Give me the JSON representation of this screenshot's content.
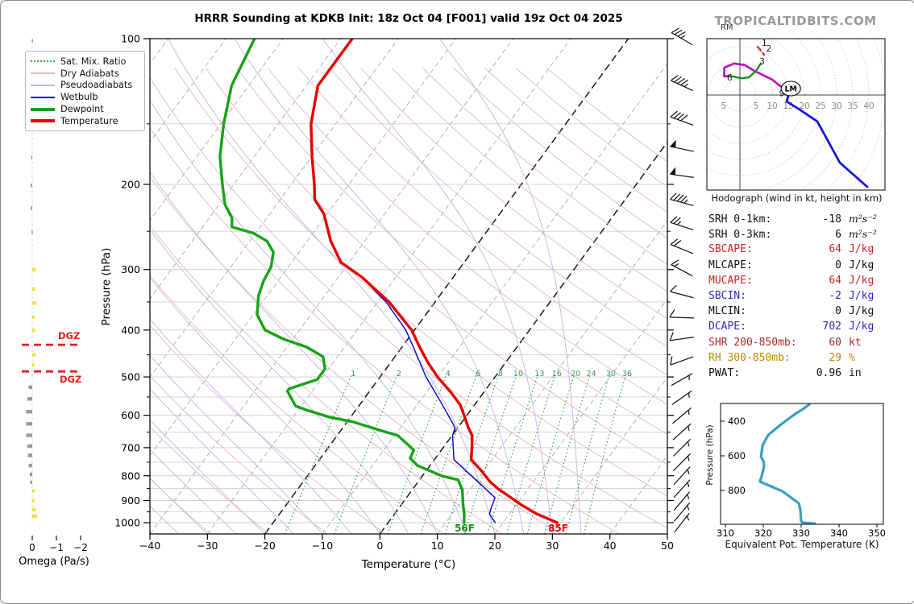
{
  "header": {
    "title": "HRRR Sounding at KDKB Init: 18z Oct 04 [F001] valid 19z Oct 04 2025",
    "watermark": "TROPICALTIDBITS.COM"
  },
  "chart_data": {
    "type": "line",
    "subtype": "skewt-logp-sounding",
    "skewt": {
      "xlabel": "Temperature (°C)",
      "ylabel": "Pressure (hPa)",
      "xlim": [
        -40,
        50
      ],
      "pressure_ticks": [
        100,
        200,
        300,
        400,
        500,
        600,
        700,
        800,
        900,
        1000
      ],
      "temp_ticks": [
        -40,
        -30,
        -20,
        -10,
        0,
        10,
        20,
        30,
        40,
        50
      ],
      "highlight_isotherms": [
        0,
        -20
      ],
      "mixing_ratio_values": [
        1,
        2,
        4,
        6,
        8,
        10,
        13,
        16,
        20,
        24,
        30,
        36
      ],
      "surface_dewpoint_label": "56F",
      "surface_temp_label": "85F",
      "temperature_profile": [
        [
          100,
          -68
        ],
        [
          125,
          -68
        ],
        [
          150,
          -64.3
        ],
        [
          175,
          -60
        ],
        [
          200,
          -56
        ],
        [
          215,
          -54
        ],
        [
          230,
          -50.6
        ],
        [
          262,
          -45.9
        ],
        [
          290,
          -41.4
        ],
        [
          311,
          -35.9
        ],
        [
          350,
          -28
        ],
        [
          400,
          -20.5
        ],
        [
          434,
          -16.9
        ],
        [
          467,
          -13.5
        ],
        [
          500,
          -10
        ],
        [
          540,
          -5.5
        ],
        [
          571,
          -2.5
        ],
        [
          600,
          -0.5
        ],
        [
          636,
          1.8
        ],
        [
          661,
          3.5
        ],
        [
          700,
          5.0
        ],
        [
          741,
          6.4
        ],
        [
          780,
          9.5
        ],
        [
          823,
          12.5
        ],
        [
          850,
          14.7
        ],
        [
          888,
          18.2
        ],
        [
          920,
          21
        ],
        [
          959,
          24.7
        ],
        [
          1000,
          29.4
        ]
      ],
      "dewpoint_profile": [
        [
          100,
          -85
        ],
        [
          125,
          -83
        ],
        [
          150,
          -79.5
        ],
        [
          175,
          -76
        ],
        [
          200,
          -72
        ],
        [
          220,
          -69
        ],
        [
          235,
          -66
        ],
        [
          245,
          -64.9
        ],
        [
          252,
          -60.5
        ],
        [
          262,
          -57
        ],
        [
          276,
          -54.5
        ],
        [
          296,
          -53
        ],
        [
          317,
          -52.5
        ],
        [
          340,
          -51.5
        ],
        [
          372,
          -49.3
        ],
        [
          400,
          -46
        ],
        [
          418,
          -41.5
        ],
        [
          434,
          -36.5
        ],
        [
          454,
          -32.5
        ],
        [
          481,
          -30.6
        ],
        [
          506,
          -30.6
        ],
        [
          529,
          -34.3
        ],
        [
          535,
          -34.3
        ],
        [
          557,
          -32.4
        ],
        [
          574,
          -31
        ],
        [
          585,
          -28.6
        ],
        [
          605,
          -23.8
        ],
        [
          619,
          -19
        ],
        [
          644,
          -13.3
        ],
        [
          661,
          -9.4
        ],
        [
          708,
          -4.8
        ],
        [
          736,
          -4.4
        ],
        [
          762,
          -2.2
        ],
        [
          800,
          3.3
        ],
        [
          816,
          6.7
        ],
        [
          855,
          8.7
        ],
        [
          920,
          10.8
        ],
        [
          959,
          12.1
        ],
        [
          1000,
          13.2
        ]
      ],
      "wetbulb_profile": [
        [
          311,
          -36
        ],
        [
          350,
          -28.5
        ],
        [
          400,
          -21.5
        ],
        [
          434,
          -18
        ],
        [
          500,
          -12
        ],
        [
          571,
          -5.6
        ],
        [
          636,
          -0.5
        ],
        [
          661,
          0.1
        ],
        [
          741,
          3.4
        ],
        [
          823,
          10.4
        ],
        [
          888,
          15.4
        ],
        [
          930,
          16
        ],
        [
          959,
          16.5
        ],
        [
          1000,
          18.6
        ]
      ],
      "colors": {
        "temperature": "#e60000",
        "dewpoint": "#17a217",
        "wetbulb": "#0000d0",
        "dry_adiabat": "#e4b9b9",
        "pseudoadiabat": "#b9b9e4",
        "mixing_ratio": "#3e9b55",
        "isotherm": "#a8a8a8",
        "isotherm_highlight": "#1a1a1a",
        "isobar": "#cfcfcf"
      }
    },
    "legend": [
      {
        "label": "Sat. Mix. Ratio",
        "color": "#3e9b55",
        "style": "dotted",
        "weight": 2
      },
      {
        "label": "Dry Adiabats",
        "color": "#e4b9b9",
        "style": "solid",
        "weight": 2
      },
      {
        "label": "Pseudoadiabats",
        "color": "#b9b9e4",
        "style": "solid",
        "weight": 2
      },
      {
        "label": "Wetbulb",
        "color": "#0000d0",
        "style": "solid",
        "weight": 2
      },
      {
        "label": "Dewpoint",
        "color": "#17a217",
        "style": "solid",
        "weight": 4
      },
      {
        "label": "Temperature",
        "color": "#e60000",
        "style": "solid",
        "weight": 4
      }
    ],
    "omega": {
      "label": "Omega (Pa/s)",
      "ticks": [
        0,
        -1,
        -2
      ],
      "dgz_label": "DGZ",
      "dgz_pressures": [
        429,
        487
      ],
      "bars": [
        [
          101,
          0.02
        ],
        [
          125,
          0.02
        ],
        [
          176,
          0.05
        ],
        [
          201,
          0.06
        ],
        [
          224,
          0.06
        ],
        [
          251,
          0.03
        ],
        [
          300,
          -0.15
        ],
        [
          329,
          -0.12
        ],
        [
          352,
          -0.17
        ],
        [
          376,
          -0.1
        ],
        [
          400,
          -0.12
        ],
        [
          450,
          -0.14
        ],
        [
          472,
          -0.1
        ],
        [
          525,
          0.15
        ],
        [
          555,
          0.2
        ],
        [
          590,
          0.25
        ],
        [
          625,
          0.25
        ],
        [
          660,
          0.25
        ],
        [
          695,
          0.2
        ],
        [
          726,
          0.18
        ],
        [
          762,
          0.15
        ],
        [
          795,
          0.1
        ],
        [
          825,
          0.08
        ],
        [
          860,
          -0.1
        ],
        [
          900,
          -0.1
        ],
        [
          940,
          -0.15
        ],
        [
          970,
          -0.2
        ]
      ]
    },
    "wind_barbs_p_kt_dir": [
      [
        100,
        35,
        300
      ],
      [
        125,
        45,
        295
      ],
      [
        148,
        40,
        290
      ],
      [
        169,
        50,
        282
      ],
      [
        192,
        50,
        278
      ],
      [
        218,
        45,
        285
      ],
      [
        244,
        25,
        288
      ],
      [
        272,
        20,
        292
      ],
      [
        301,
        15,
        298
      ],
      [
        338,
        10,
        285
      ],
      [
        377,
        10,
        272
      ],
      [
        417,
        10,
        262
      ],
      [
        463,
        10,
        250
      ],
      [
        506,
        5,
        60
      ],
      [
        552,
        5,
        55
      ],
      [
        601,
        5,
        50
      ],
      [
        649,
        5,
        48
      ],
      [
        700,
        5,
        45
      ],
      [
        750,
        5,
        45
      ],
      [
        800,
        5,
        42
      ],
      [
        851,
        5,
        42
      ],
      [
        902,
        5,
        40
      ],
      [
        951,
        5,
        40
      ],
      [
        1000,
        5,
        38
      ]
    ],
    "hodograph": {
      "caption": "Hodograph (wind in kt, height in km)",
      "ring_step_kt": 5,
      "ring_axis_labels": [
        5,
        5,
        10,
        15,
        20,
        25,
        30,
        35,
        40
      ],
      "segments": [
        {
          "name": "0-9km-plus",
          "color": "#1515e0",
          "dashed": false,
          "width": 2.8,
          "points_uv": [
            [
              39.5,
              -28.5
            ],
            [
              31,
              -21
            ],
            [
              24,
              -8.2
            ],
            [
              18.5,
              -4.5
            ],
            [
              14.5,
              -2
            ],
            [
              15.3,
              0.8
            ]
          ]
        },
        {
          "name": "6-9km",
          "color": "#bb10bb",
          "dashed": false,
          "width": 2.6,
          "points_uv": [
            [
              15,
              1.3
            ],
            [
              12.5,
              2.8
            ],
            [
              10,
              4.8
            ],
            [
              4.5,
              7.5
            ],
            [
              1.5,
              9.3
            ],
            [
              -1.8,
              9.8
            ],
            [
              -4.8,
              8.5
            ],
            [
              -4.9,
              5.8
            ],
            [
              -2.8,
              5.9
            ]
          ]
        },
        {
          "name": "3-6km",
          "color": "#1f8c1f",
          "dashed": false,
          "width": 2.4,
          "points_uv": [
            [
              -2.8,
              5.9
            ],
            [
              0.5,
              5.2
            ],
            [
              2.8,
              5.5
            ],
            [
              5,
              7.5
            ],
            [
              6.5,
              9.8
            ]
          ]
        },
        {
          "name": "0-2km",
          "color": "#e03030",
          "dashed": true,
          "width": 2.4,
          "points_uv": [
            [
              5.5,
              15
            ],
            [
              7.5,
              12.5
            ]
          ]
        }
      ],
      "height_labels_km": [
        {
          "label": "1",
          "u": 7.6,
          "v": 16.0
        },
        {
          "label": "2",
          "u": 9.0,
          "v": 14.2
        },
        {
          "label": "3",
          "u": 6.9,
          "v": 10.2
        },
        {
          "label": "6",
          "u": -3.2,
          "v": 5.2
        },
        {
          "label": "9",
          "u": 13.0,
          "v": 0.4
        }
      ],
      "storm_motion": {
        "lm_label": "LM",
        "lm_u": 15.8,
        "lm_v": 2.0,
        "rm_label": "RM"
      }
    },
    "stats": [
      {
        "label": "SRH 0-1km:",
        "value": "-18",
        "unit": "m²s⁻²",
        "color": "#111111",
        "math_unit": true
      },
      {
        "label": "SRH 0-3km:",
        "value": "6",
        "unit": "m²s⁻²",
        "color": "#111111",
        "math_unit": true
      },
      {
        "label": "SBCAPE:",
        "value": "64",
        "unit": "J/kg",
        "color": "#d42020",
        "math_unit": false
      },
      {
        "label": "MLCAPE:",
        "value": "0",
        "unit": "J/kg",
        "color": "#111111",
        "math_unit": false
      },
      {
        "label": "MUCAPE:",
        "value": "64",
        "unit": "J/kg",
        "color": "#d42020",
        "math_unit": false
      },
      {
        "label": "SBCIN:",
        "value": "-2",
        "unit": "J/kg",
        "color": "#2828cc",
        "math_unit": false
      },
      {
        "label": "MLCIN:",
        "value": "0",
        "unit": "J/kg",
        "color": "#111111",
        "math_unit": false
      },
      {
        "label": "DCAPE:",
        "value": "702",
        "unit": "J/kg",
        "color": "#2828cc",
        "math_unit": false
      },
      {
        "label": "SHR 200-850mb:",
        "value": "60",
        "unit": "kt",
        "color": "#a52a2a",
        "math_unit": false
      },
      {
        "label": "RH 300-850mb:",
        "value": "29",
        "unit": "%",
        "color": "#b8860b",
        "math_unit": false
      },
      {
        "label": "PWAT:",
        "value": "0.96",
        "unit": "in",
        "color": "#111111",
        "math_unit": false
      }
    ],
    "theta_e": {
      "caption": "Equivalent Pot. Temperature (K)",
      "ylabel": "Pressure (hPa)",
      "x_ticks": [
        310,
        320,
        330,
        340,
        350
      ],
      "y_ticks": [
        400,
        600,
        800
      ],
      "color": "#3a9fc0",
      "profile_p_K": [
        [
          300,
          332.3
        ],
        [
          330,
          330.5
        ],
        [
          360,
          328.3
        ],
        [
          425,
          324.3
        ],
        [
          480,
          321.3
        ],
        [
          540,
          319.8
        ],
        [
          605,
          319.4
        ],
        [
          635,
          320.1
        ],
        [
          660,
          320.2
        ],
        [
          690,
          319.9
        ],
        [
          716,
          319.6
        ],
        [
          749,
          319.1
        ],
        [
          805,
          325.1
        ],
        [
          875,
          329.4
        ],
        [
          916,
          329.8
        ],
        [
          977,
          330.0
        ],
        [
          986,
          330.4
        ],
        [
          991,
          333.6
        ]
      ]
    }
  }
}
